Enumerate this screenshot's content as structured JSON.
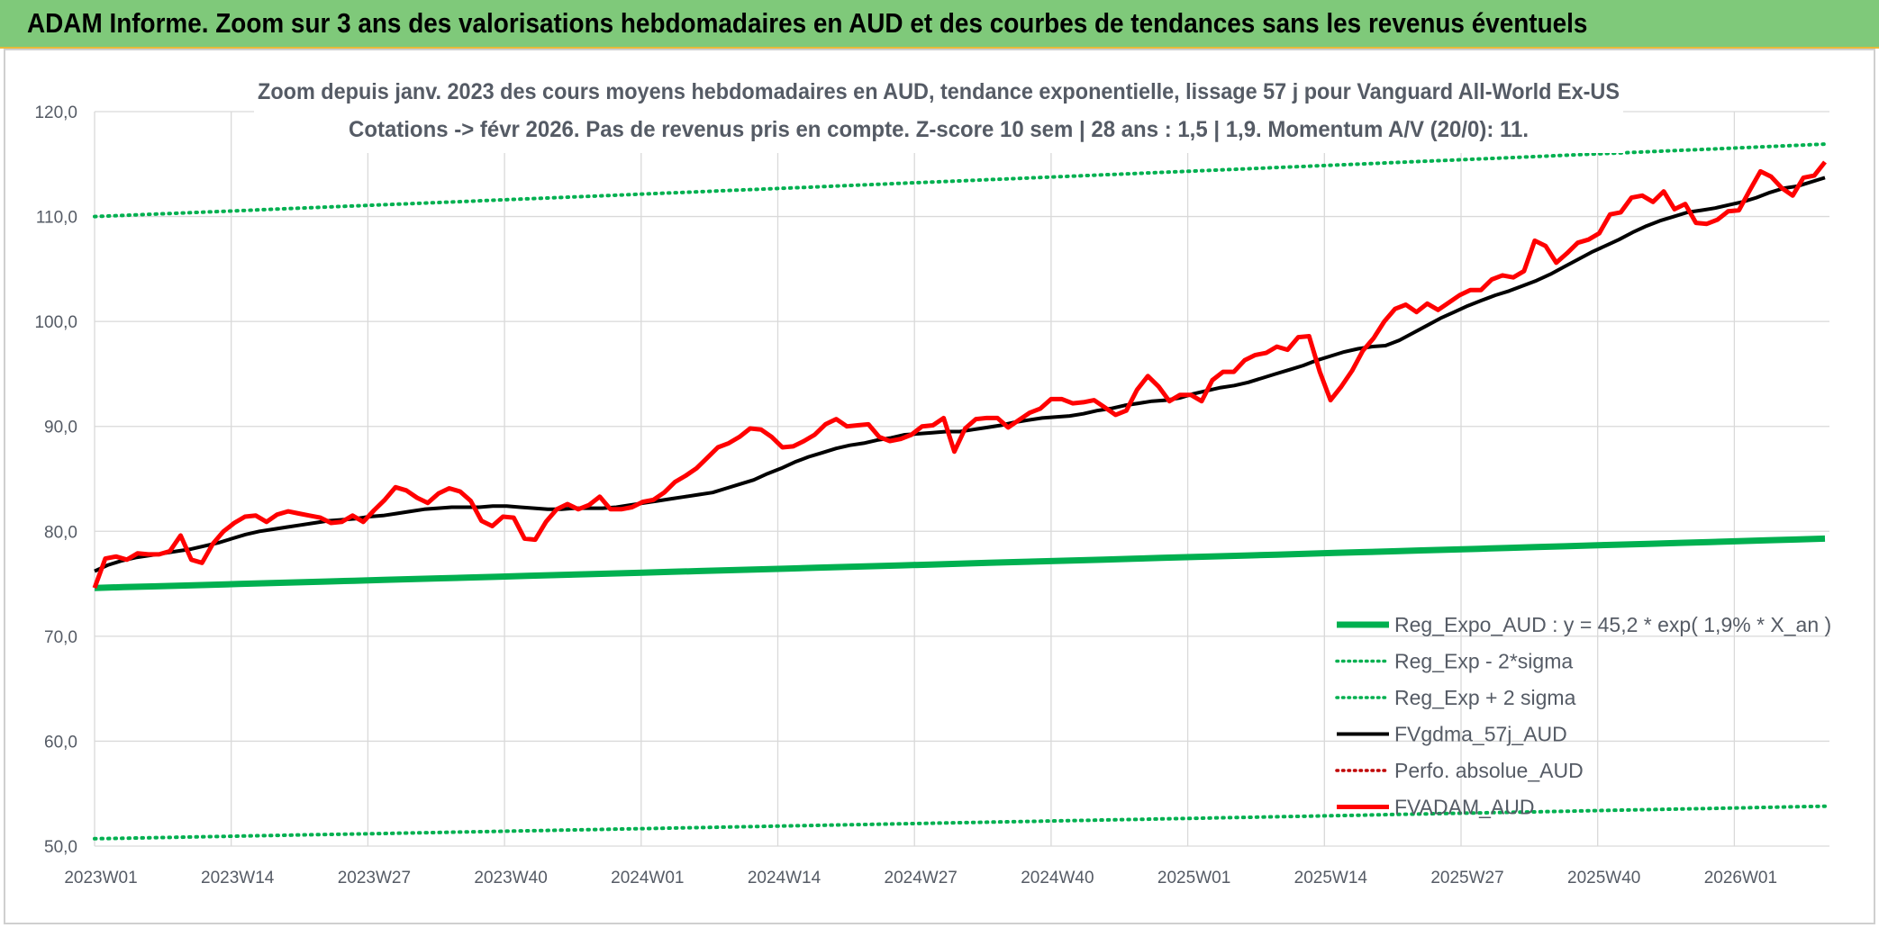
{
  "header": {
    "title": "ADAM Informe. Zoom sur 3 ans des valorisations hebdomadaires en AUD et des courbes de tendances sans les revenus éventuels"
  },
  "colors": {
    "banner": "#7fc97a",
    "reg": "#00b050",
    "gdma": "#000000",
    "fv": "#ff0000",
    "grid": "#d9d9d9",
    "text": "#555b65"
  },
  "chart_data": {
    "type": "line",
    "title_lines": [
      "Zoom depuis janv. 2023 des cours moyens hebdomadaires en AUD, tendance exponentielle, lissage 57 j pour Vanguard All-World Ex-US",
      "Cotations -> févr 2026. Pas de revenus pris en compte. Z-score 10 sem | 28 ans : 1,5 | 1,9. Momentum A/V (20/0): 11."
    ],
    "xlabel": "",
    "ylabel": "",
    "ylim": [
      50,
      120
    ],
    "y_ticks": [
      "50,0",
      "60,0",
      "70,0",
      "80,0",
      "90,0",
      "100,0",
      "110,0",
      "120,0"
    ],
    "x_tick_labels": [
      "2023W01",
      "2023W14",
      "2023W27",
      "2023W40",
      "2024W01",
      "2024W14",
      "2024W27",
      "2024W40",
      "2025W01",
      "2025W14",
      "2025W27",
      "2025W40",
      "2026W01"
    ],
    "x_period": "2023W01 - 2026W08 (weekly)",
    "grid": true,
    "legend_position": "bottom-right",
    "legend": [
      {
        "label": "Reg_Expo_AUD : y = 45,2 * exp( 1,9% *  X_an )",
        "style": "solid-thick",
        "color": "#00b050"
      },
      {
        "label": "Reg_Exp - 2*sigma",
        "style": "dotted",
        "color": "#00b050"
      },
      {
        "label": "Reg_Exp + 2 sigma",
        "style": "dotted",
        "color": "#00b050"
      },
      {
        "label": "FVgdma_57j_AUD",
        "style": "solid",
        "color": "#000000"
      },
      {
        "label": "Perfo. absolue_AUD",
        "style": "dotted",
        "color": "#c00000"
      },
      {
        "label": "FVADAM_AUD",
        "style": "solid-thick",
        "color": "#ff0000"
      }
    ],
    "series": [
      {
        "name": "Reg_Expo_AUD : y = 45,2 * exp( 1,9% *  X_an )",
        "start": 74.6,
        "end": 79.3
      },
      {
        "name": "Reg_Exp - 2*sigma",
        "start": 50.7,
        "end": 53.8
      },
      {
        "name": "Reg_Exp + 2 sigma",
        "start": 110.0,
        "end": 116.9
      },
      {
        "name": "FVgdma_57j_AUD",
        "values": [
          76.2,
          76.8,
          77.2,
          77.5,
          77.7,
          77.9,
          78.1,
          78.3,
          78.6,
          78.9,
          79.3,
          79.7,
          80.0,
          80.2,
          80.4,
          80.6,
          80.8,
          81.0,
          81.1,
          81.2,
          81.4,
          81.5,
          81.7,
          81.9,
          82.1,
          82.2,
          82.3,
          82.3,
          82.3,
          82.4,
          82.4,
          82.3,
          82.2,
          82.1,
          82.1,
          82.2,
          82.2,
          82.2,
          82.3,
          82.5,
          82.7,
          82.9,
          83.1,
          83.3,
          83.5,
          83.7,
          84.1,
          84.5,
          84.9,
          85.5,
          86.0,
          86.6,
          87.1,
          87.5,
          87.9,
          88.2,
          88.4,
          88.7,
          88.9,
          89.2,
          89.3,
          89.4,
          89.5,
          89.5,
          89.7,
          89.9,
          90.1,
          90.4,
          90.6,
          90.8,
          90.9,
          91.0,
          91.2,
          91.5,
          91.7,
          92.0,
          92.2,
          92.4,
          92.5,
          92.7,
          93.1,
          93.4,
          93.7,
          93.9,
          94.2,
          94.6,
          95.0,
          95.4,
          95.8,
          96.3,
          96.7,
          97.1,
          97.4,
          97.6,
          97.7,
          98.2,
          98.9,
          99.6,
          100.3,
          100.9,
          101.5,
          102.0,
          102.5,
          102.9,
          103.4,
          103.9,
          104.5,
          105.2,
          105.9,
          106.6,
          107.2,
          107.8,
          108.5,
          109.1,
          109.6,
          110.0,
          110.4,
          110.6,
          110.8,
          111.1,
          111.4,
          111.8,
          112.3,
          112.7,
          112.9,
          113.3,
          113.7
        ]
      },
      {
        "name": "FVADAM_AUD",
        "values": [
          74.6,
          77.4,
          77.6,
          77.3,
          77.9,
          77.8,
          77.8,
          78.1,
          79.6,
          77.3,
          77.0,
          78.8,
          80.0,
          80.8,
          81.4,
          81.5,
          80.9,
          81.6,
          81.9,
          81.7,
          81.5,
          81.3,
          80.8,
          80.9,
          81.5,
          80.9,
          82.0,
          83.0,
          84.2,
          83.9,
          83.2,
          82.7,
          83.6,
          84.1,
          83.8,
          82.9,
          81.0,
          80.5,
          81.4,
          81.3,
          79.3,
          79.2,
          80.9,
          82.1,
          82.6,
          82.1,
          82.5,
          83.3,
          82.1,
          82.1,
          82.3,
          82.8,
          83.0,
          83.7,
          84.7,
          85.3,
          86.0,
          87.0,
          88.0,
          88.4,
          89.0,
          89.8,
          89.7,
          89.0,
          88.0,
          88.1,
          88.6,
          89.2,
          90.2,
          90.7,
          90.0,
          90.1,
          90.2,
          89.0,
          88.6,
          88.8,
          89.2,
          90.0,
          90.1,
          90.8,
          87.6,
          89.8,
          90.7,
          90.8,
          90.8,
          89.9,
          90.6,
          91.3,
          91.7,
          92.6,
          92.6,
          92.2,
          92.3,
          92.5,
          91.8,
          91.1,
          91.5,
          93.5,
          94.8,
          93.8,
          92.4,
          93.0,
          93.0,
          92.4,
          94.4,
          95.2,
          95.2,
          96.3,
          96.8,
          97.0,
          97.6,
          97.3,
          98.5,
          98.6,
          95.2,
          92.5,
          93.8,
          95.3,
          97.2,
          98.4,
          100.0,
          101.2,
          101.6,
          100.9,
          101.7,
          101.1,
          101.8,
          102.5,
          103.0,
          103.0,
          104.0,
          104.4,
          104.2,
          104.8,
          107.7,
          107.2,
          105.6,
          106.5,
          107.5,
          107.8,
          108.4,
          110.2,
          110.4,
          111.8,
          112.0,
          111.4,
          112.4,
          110.7,
          111.2,
          109.4,
          109.3,
          109.7,
          110.5,
          110.6,
          112.5,
          114.3,
          113.8,
          112.7,
          112.0,
          113.7,
          113.9,
          115.2
        ]
      }
    ]
  }
}
